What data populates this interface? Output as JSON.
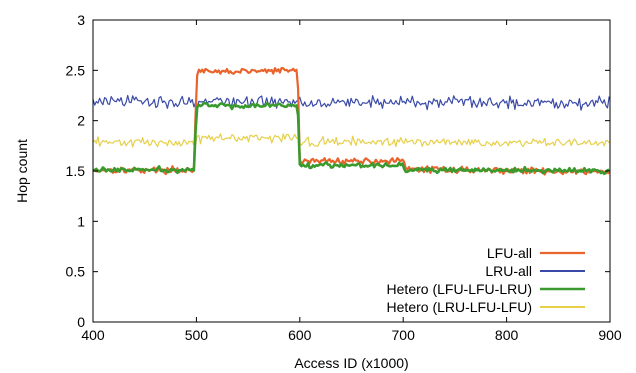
{
  "chart_data": {
    "type": "line",
    "title": "",
    "xlabel": "Access ID (x1000)",
    "ylabel": "Hop count",
    "xlim": [
      400,
      900
    ],
    "ylim": [
      0,
      3
    ],
    "x_ticks": [
      "400",
      "500",
      "600",
      "700",
      "800",
      "900"
    ],
    "y_ticks": [
      "0",
      "0.5",
      "1",
      "1.5",
      "2",
      "2.5",
      "3"
    ],
    "grid": false,
    "legend_position": "bottom-right",
    "series": [
      {
        "name": "LFU-all",
        "color": "#e8642c",
        "width": 2.2,
        "noise": 0.03,
        "x": [
          400,
          498,
          500,
          598,
          600,
          700,
          702,
          900
        ],
        "y": [
          1.51,
          1.51,
          2.48,
          2.5,
          1.6,
          1.6,
          1.52,
          1.49
        ]
      },
      {
        "name": "LRU-all",
        "color": "#3a4aa8",
        "width": 1.2,
        "noise": 0.06,
        "x": [
          400,
          900
        ],
        "y": [
          2.19,
          2.18
        ]
      },
      {
        "name": "Hetero (LFU-LFU-LRU)",
        "color": "#3a9a2e",
        "width": 2.6,
        "noise": 0.025,
        "x": [
          400,
          498,
          500,
          598,
          600,
          700,
          702,
          900
        ],
        "y": [
          1.51,
          1.51,
          2.15,
          2.15,
          1.56,
          1.56,
          1.51,
          1.5
        ]
      },
      {
        "name": "Hetero (LRU-LFU-LFU)",
        "color": "#e6d04a",
        "width": 1.2,
        "noise": 0.045,
        "x": [
          400,
          498,
          500,
          598,
          600,
          900
        ],
        "y": [
          1.78,
          1.78,
          1.83,
          1.83,
          1.79,
          1.78
        ]
      }
    ]
  }
}
